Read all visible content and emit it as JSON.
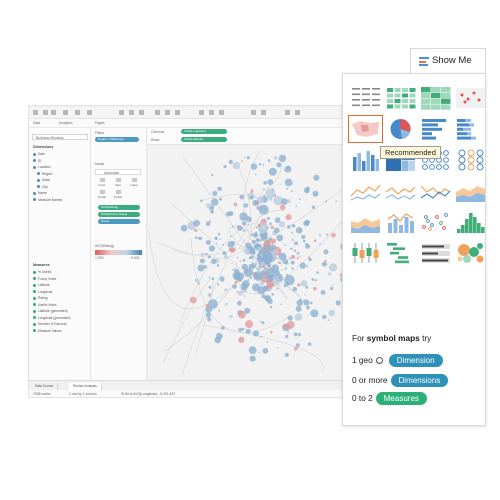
{
  "app": {
    "top_tabs": [
      "Data",
      "Analytics"
    ],
    "data_source": "Business Reviews",
    "dimensions_header": "Dimensions",
    "dimensions": [
      "Date",
      "ID",
      "Location",
      "Region",
      "State",
      "City",
      "Name",
      "Measure Names"
    ],
    "measures_header": "Measures",
    "measures": [
      "% Useful",
      "Funny Votes",
      "Latitude",
      "Longitude",
      "Rating",
      "Useful Votes",
      "Latitude (generated)",
      "Longitude (generated)",
      "Number of Records",
      "Measure Values"
    ],
    "shelves": {
      "filters": "Filters",
      "filter_pill": "Region: Pittsburgh",
      "pages": "Pages",
      "columns": "Columns",
      "rows": "Rows",
      "columns_pill": "AVG(Longitude)",
      "rows_pill": "AVG(Latitude)"
    },
    "marks": {
      "header": "Marks",
      "type": "Automatic",
      "buttons": [
        "Color",
        "Size",
        "Label",
        "Detail",
        "Tooltip"
      ],
      "pills": [
        "AVG(Rating)",
        "SUM(Useful Votes)",
        "Name"
      ]
    },
    "legend": {
      "title": "AVG(Rating)",
      "min": "1.000",
      "max": "5.000"
    },
    "bottom_tabs": [
      "Data Source",
      "Review Analysis"
    ],
    "status": [
      "2098 marks",
      "1 row by 1 column",
      "SUM of AVG(Longitude): -6,301.647"
    ]
  },
  "showme": {
    "title": "Show Me",
    "tooltip": "Recommended",
    "selected_index": 4,
    "hint": {
      "prefix": "For ",
      "chart_name": "symbol maps",
      "suffix": " try",
      "rows": [
        {
          "count": "1 geo",
          "chip": "Dimension",
          "kind": "dim"
        },
        {
          "count": "0 or more",
          "chip": "Dimensions",
          "kind": "dim"
        },
        {
          "count": "0 to 2",
          "chip": "Measures",
          "kind": "meas"
        }
      ]
    },
    "chart_types": [
      "text-table",
      "heat-map",
      "highlight-table",
      "symbol-map",
      "filled-map",
      "pie-chart",
      "horizontal-bars",
      "stacked-bars",
      "side-by-side-bars",
      "treemap",
      "circle-views",
      "side-by-side-circles",
      "lines-continuous",
      "lines-discrete",
      "dual-lines",
      "area-continuous",
      "area-discrete",
      "dual-combination",
      "scatter-plot",
      "histogram",
      "box-and-whisker",
      "gantt-chart",
      "bullet-graph",
      "packed-bubbles"
    ]
  },
  "colors": {
    "dimension": "#2d91b8",
    "measure": "#2bb07a",
    "selected_outline": "#e06a2f",
    "tooltip_bg": "#fff8d8"
  }
}
